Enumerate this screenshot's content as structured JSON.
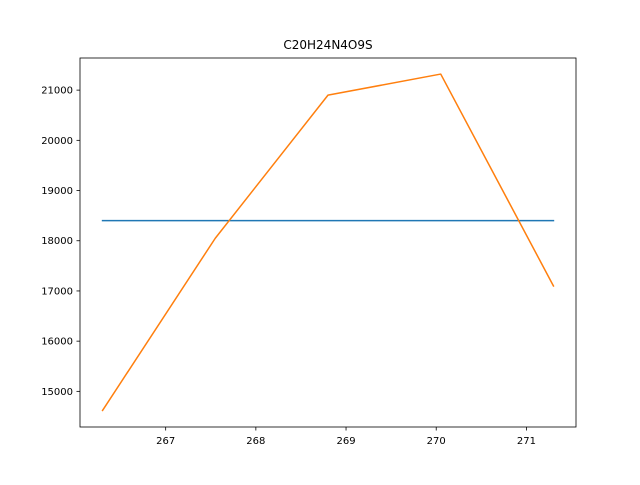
{
  "chart_data": {
    "type": "line",
    "title": "C20H24N4O9S",
    "xlim": [
      266.05,
      271.55
    ],
    "ylim": [
      14290,
      21640
    ],
    "xticks": [
      267,
      268,
      269,
      270,
      271
    ],
    "yticks": [
      15000,
      16000,
      17000,
      18000,
      19000,
      20000,
      21000
    ],
    "grid": false,
    "series": [
      {
        "color": "#1f77b4",
        "x": [
          266.3,
          271.3
        ],
        "y": [
          18400,
          18400
        ]
      },
      {
        "color": "#ff7f0e",
        "x": [
          266.3,
          267.55,
          268.8,
          270.05,
          271.3
        ],
        "y": [
          14620,
          18050,
          20900,
          21320,
          17100
        ]
      }
    ]
  }
}
